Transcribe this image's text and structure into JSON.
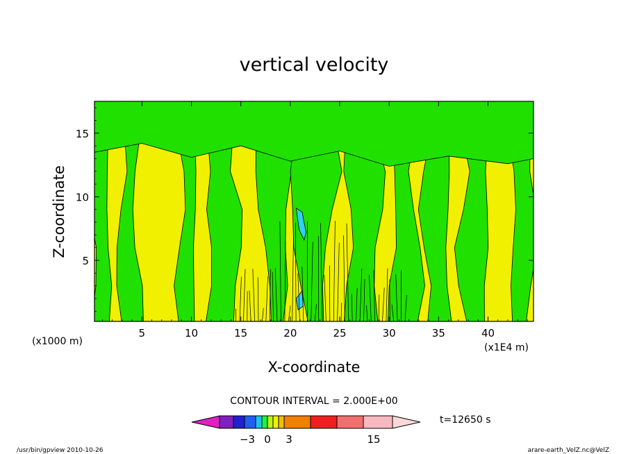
{
  "chart_data": {
    "type": "heatmap",
    "title": "vertical velocity",
    "xlabel": "X-coordinate",
    "ylabel": "Z-coordinate",
    "x_unit_left": "(x1000 m)",
    "x_unit_right": "(x1E4 m)",
    "xlim": [
      0.2,
      44.6
    ],
    "ylim": [
      0.2,
      17.5
    ],
    "x_ticks": [
      5,
      10,
      15,
      20,
      25,
      30,
      35,
      40
    ],
    "y_ticks": [
      5,
      10,
      15
    ],
    "contour_interval": "CONTOUR INTERVAL = 2.000E+00",
    "time_label": "t=12650 s",
    "colorbar": {
      "levels": [
        -3,
        0,
        3,
        15
      ],
      "label_texts": [
        "−3",
        "0",
        "3",
        "15"
      ],
      "colors": [
        "#e020c0",
        "#8020c0",
        "#2020d0",
        "#2060f0",
        "#20c0f0",
        "#20f040",
        "#c0f020",
        "#f0f000",
        "#f0c000",
        "#f08000",
        "#f02020",
        "#f07070",
        "#f8b8c0",
        "#f8d8d8"
      ]
    },
    "fill_colors": {
      "positive": "#f0f000",
      "negative": "#20e000",
      "strong_negative": "#30d0f0"
    }
  },
  "footer": {
    "left": "/usr/bin/gpview  2010-10-26",
    "right": "arare-earth_VelZ.nc@VelZ"
  }
}
